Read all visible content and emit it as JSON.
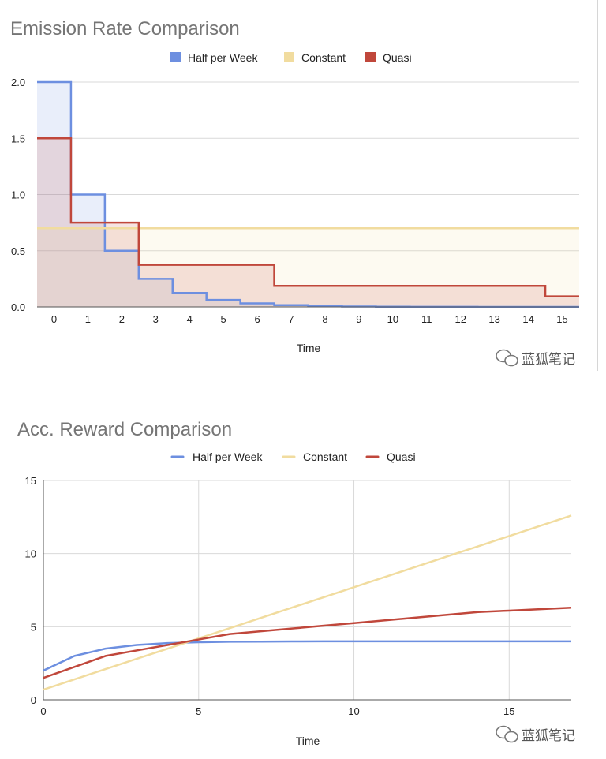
{
  "watermark": "蓝狐笔记",
  "chart_data": [
    {
      "type": "area",
      "title": "Emission Rate Comparison",
      "xlabel": "Time",
      "ylabel": "",
      "step": true,
      "xlim": [
        -0.5,
        15.5
      ],
      "ylim": [
        0,
        2
      ],
      "x_ticks": [
        0,
        1,
        2,
        3,
        4,
        5,
        6,
        7,
        8,
        9,
        10,
        11,
        12,
        13,
        14,
        15
      ],
      "y_ticks": [
        "0.0",
        "0.5",
        "1.0",
        "1.5",
        "2.0"
      ],
      "legend_position": "top",
      "grid": true,
      "series": [
        {
          "name": "Half per Week",
          "color": "#6d8fe0",
          "values": [
            2,
            1,
            0.5,
            0.25,
            0.125,
            0.0625,
            0.03125,
            0.015625,
            0.0078125,
            0.0039,
            0.002,
            0.001,
            0.0005,
            0.0002,
            0.0001,
            0.0001
          ]
        },
        {
          "name": "Constant",
          "color": "#f1dc9f",
          "values": [
            0.7,
            0.7,
            0.7,
            0.7,
            0.7,
            0.7,
            0.7,
            0.7,
            0.7,
            0.7,
            0.7,
            0.7,
            0.7,
            0.7,
            0.7,
            0.7
          ]
        },
        {
          "name": "Quasi",
          "color": "#c0473b",
          "values": [
            1.5,
            0.75,
            0.75,
            0.375,
            0.375,
            0.375,
            0.375,
            0.1875,
            0.1875,
            0.1875,
            0.1875,
            0.1875,
            0.1875,
            0.1875,
            0.1875,
            0.09375
          ]
        }
      ]
    },
    {
      "type": "line",
      "title": "Acc. Reward Comparison",
      "xlabel": "Time",
      "ylabel": "",
      "xlim": [
        0,
        17
      ],
      "ylim": [
        0,
        15
      ],
      "x_ticks": [
        0,
        5,
        10,
        15
      ],
      "y_ticks": [
        0,
        5,
        10,
        15
      ],
      "legend_position": "top",
      "grid": true,
      "x": [
        0,
        1,
        2,
        3,
        4,
        5,
        6,
        7,
        8,
        9,
        10,
        11,
        12,
        13,
        14,
        15,
        16,
        17
      ],
      "series": [
        {
          "name": "Half per Week",
          "color": "#6d8fe0",
          "values": [
            2.0,
            3.0,
            3.5,
            3.75,
            3.88,
            3.94,
            3.97,
            3.98,
            3.99,
            4.0,
            4.0,
            4.0,
            4.0,
            4.0,
            4.0,
            4.0,
            4.0,
            4.0
          ]
        },
        {
          "name": "Constant",
          "color": "#f1dc9f",
          "values": [
            0.7,
            1.4,
            2.1,
            2.8,
            3.5,
            4.2,
            4.9,
            5.6,
            6.3,
            7.0,
            7.7,
            8.4,
            9.1,
            9.8,
            10.5,
            11.2,
            11.9,
            12.6
          ]
        },
        {
          "name": "Quasi",
          "color": "#c0473b",
          "values": [
            1.5,
            2.25,
            3.0,
            3.375,
            3.75,
            4.125,
            4.5,
            4.6875,
            4.875,
            5.0625,
            5.25,
            5.4375,
            5.625,
            5.8125,
            6.0,
            6.1,
            6.2,
            6.3
          ]
        }
      ]
    }
  ]
}
